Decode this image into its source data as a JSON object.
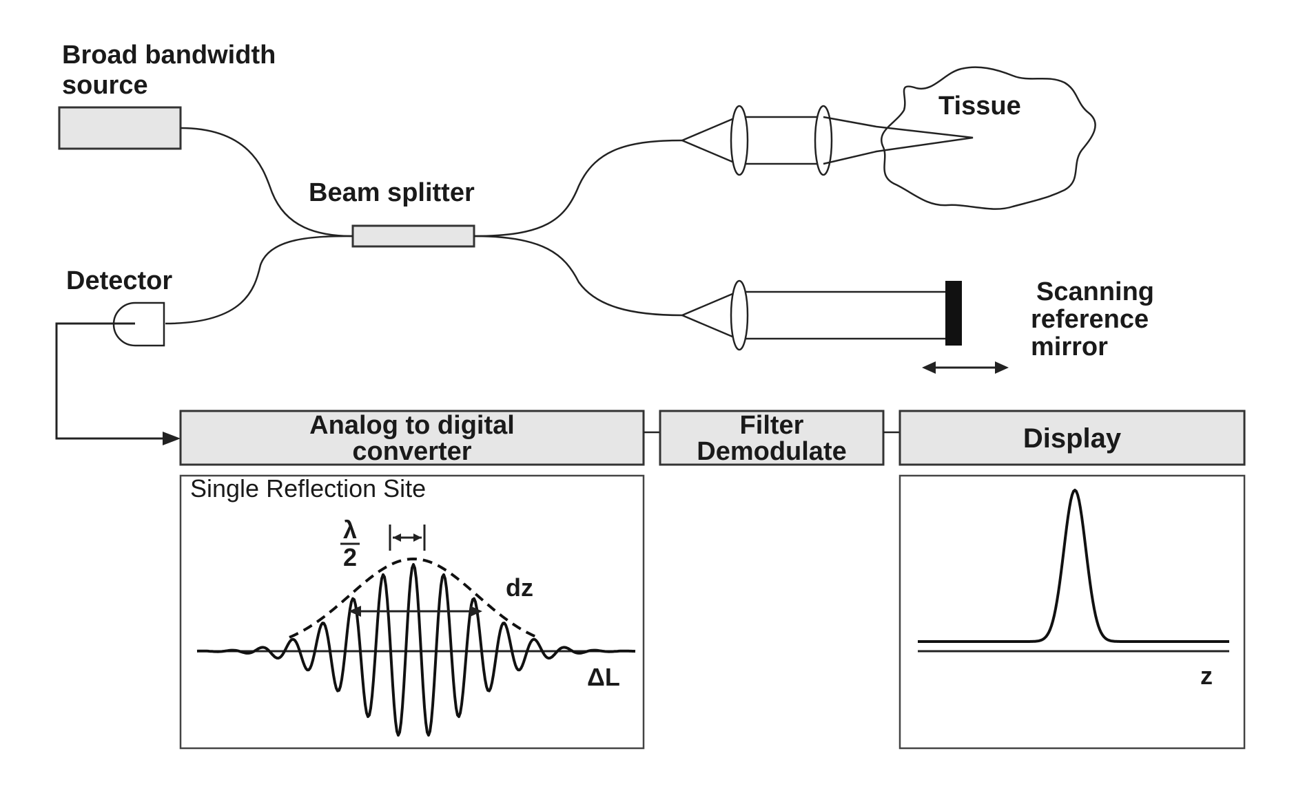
{
  "labels": {
    "source_line1": "Broad bandwidth",
    "source_line2": "source",
    "beam_splitter": "Beam splitter",
    "tissue": "Tissue",
    "detector": "Detector",
    "mirror_line1": "Scanning",
    "mirror_line2": "reference",
    "mirror_line3": "mirror"
  },
  "boxes": {
    "adc_line1": "Analog to digital",
    "adc_line2": "converter",
    "filter_line1": "Filter",
    "filter_line2": "Demodulate",
    "display": "Display"
  },
  "interferogram": {
    "title": "Single Reflection Site",
    "lambda_numerator": "λ",
    "lambda_denominator": "2",
    "coherence_label": "dz",
    "axis_label": "ΔL"
  },
  "depth_profile": {
    "axis_label": "z"
  },
  "colors": {
    "box_fill": "#e6e6e6",
    "line": "#222222",
    "mirror": "#111111"
  }
}
